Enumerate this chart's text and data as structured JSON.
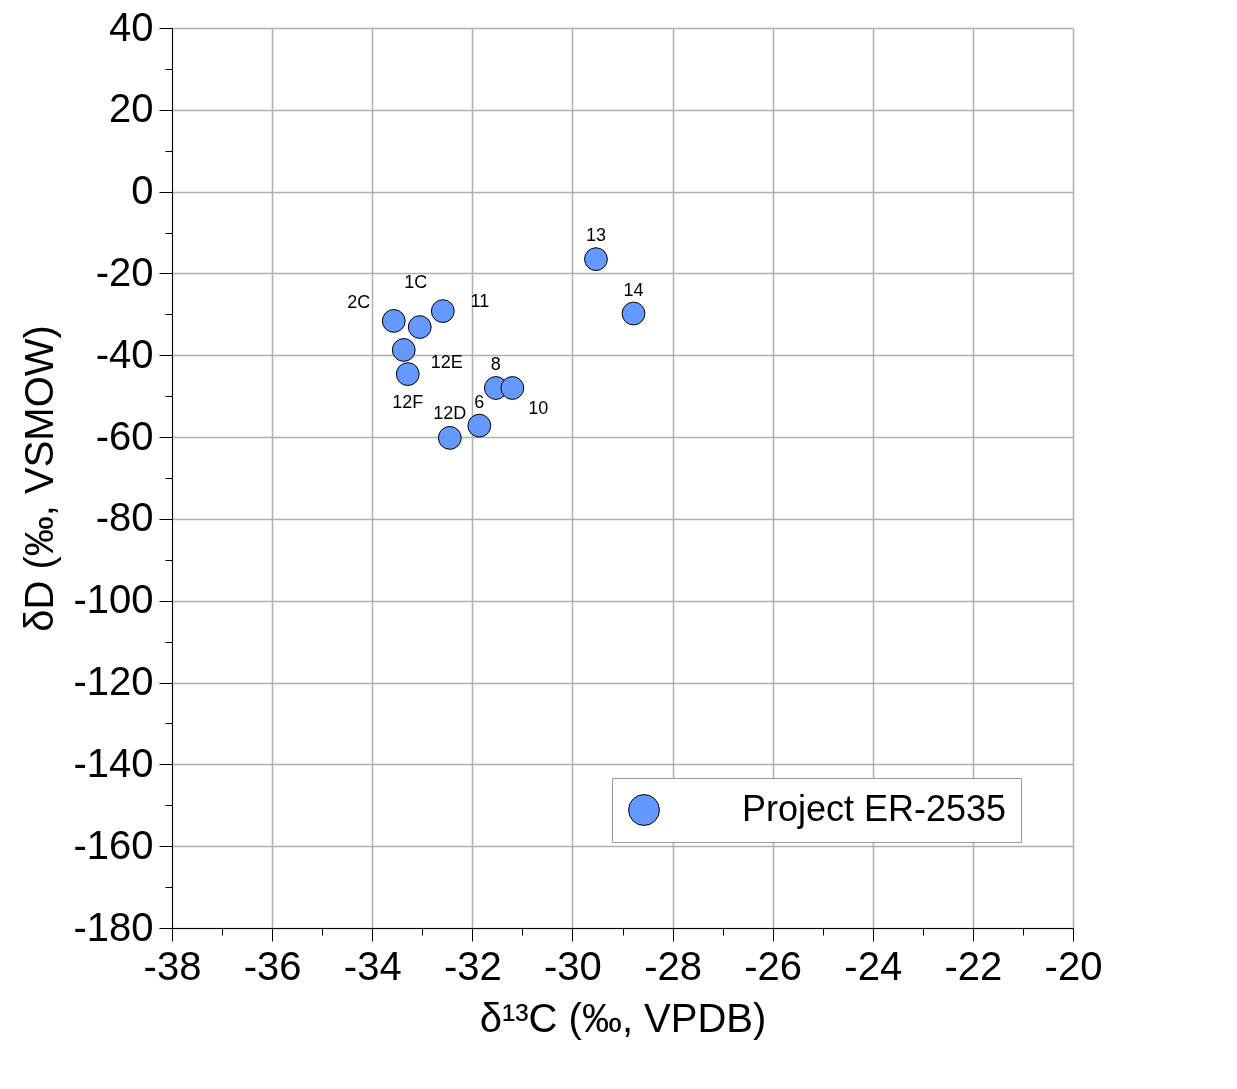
{
  "chart_data": {
    "type": "scatter",
    "xlabel": "δ¹³C (‰, VPDB)",
    "ylabel": "δD (‰, VSMOW)",
    "xlim": [
      -38,
      -20
    ],
    "xticks": [
      -38,
      {
        "value": -37,
        "label": null
      },
      -36,
      {
        "value": -35,
        "label": null
      },
      -34,
      {
        "value": -33,
        "label": null
      },
      -32,
      {
        "value": -31,
        "label": null
      },
      -30,
      {
        "value": -29,
        "label": null
      },
      -28,
      {
        "value": -27,
        "label": null
      },
      -26,
      {
        "value": -25,
        "label": null
      },
      -24,
      {
        "value": -23,
        "label": null
      },
      -22,
      {
        "value": -21,
        "label": null
      },
      -20
    ],
    "ylim": [
      -180,
      40
    ],
    "yticks": [
      -180,
      {
        "value": -170,
        "label": null
      },
      -160,
      {
        "value": -150,
        "label": null
      },
      -140,
      {
        "value": -130,
        "label": null
      },
      -120,
      {
        "value": -110,
        "label": null
      },
      -100,
      {
        "value": -90,
        "label": null
      },
      -80,
      {
        "value": -70,
        "label": null
      },
      -60,
      {
        "value": -50,
        "label": null
      },
      -40,
      {
        "value": -30,
        "label": null
      },
      -20,
      {
        "value": -10,
        "label": null
      },
      0,
      {
        "value": 10,
        "label": null
      },
      20,
      {
        "value": 30,
        "label": null
      },
      40
    ],
    "grid": true,
    "legend": "bottom right",
    "marker": "circle",
    "series": [
      {
        "name": "Project ER-2535",
        "color": "#6699ff",
        "x": [
          -33.57,
          -33.05,
          -32.59,
          -33.37,
          -33.29,
          -31.53,
          -31.2,
          -31.86,
          -32.45,
          -29.53,
          -28.78
        ],
        "values": [
          -31.6,
          -33.1,
          -29.2,
          -38.7,
          -44.6,
          -48.0,
          -48.0,
          -57.2,
          -60.2,
          -16.5,
          -29.8
        ]
      }
    ],
    "annotations": [
      {
        "text": "2C",
        "x": -33.57,
        "y": -31.6
      },
      {
        "text": "1C",
        "x": -33.05,
        "y": -33.1
      },
      {
        "text": "11",
        "x": -32.59,
        "y": -29.2
      },
      {
        "text": "12E",
        "x": -33.37,
        "y": -38.7
      },
      {
        "text": "12F",
        "x": -33.29,
        "y": -44.6
      },
      {
        "text": "8",
        "x": -31.53,
        "y": -48.0
      },
      {
        "text": "10",
        "x": -31.2,
        "y": -48.0
      },
      {
        "text": "6",
        "x": -31.86,
        "y": -57.2
      },
      {
        "text": "12D",
        "x": -32.45,
        "y": -60.2
      },
      {
        "text": "13",
        "x": -29.53,
        "y": -16.5
      },
      {
        "text": "14",
        "x": -28.78,
        "y": -29.8
      }
    ]
  }
}
